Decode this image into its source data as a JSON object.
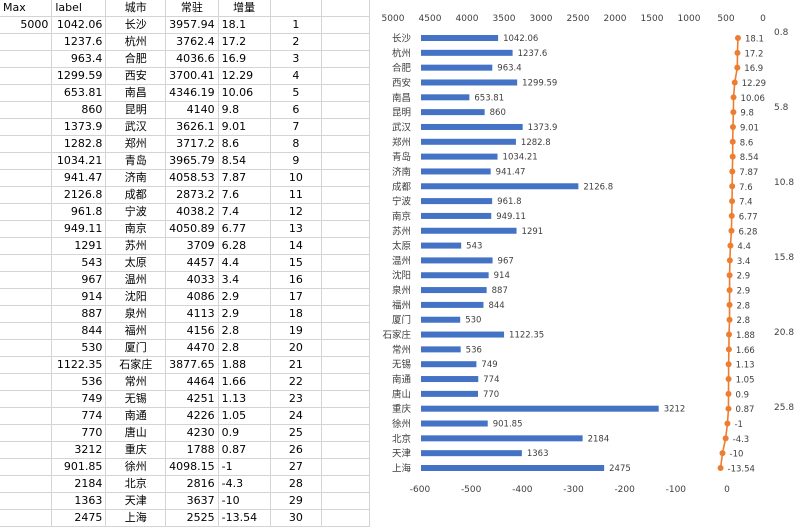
{
  "sheet": {
    "headers": [
      "Max",
      "label",
      "城市",
      "常驻",
      "增量",
      "",
      ""
    ],
    "max_value": "5000",
    "rows": [
      {
        "label": "1042.06",
        "city": "长沙",
        "pop": "3957.94",
        "inc": "18.1",
        "rank": "1"
      },
      {
        "label": "1237.6",
        "city": "杭州",
        "pop": "3762.4",
        "inc": "17.2",
        "rank": "2"
      },
      {
        "label": "963.4",
        "city": "合肥",
        "pop": "4036.6",
        "inc": "16.9",
        "rank": "3"
      },
      {
        "label": "1299.59",
        "city": "西安",
        "pop": "3700.41",
        "inc": "12.29",
        "rank": "4"
      },
      {
        "label": "653.81",
        "city": "南昌",
        "pop": "4346.19",
        "inc": "10.06",
        "rank": "5"
      },
      {
        "label": "860",
        "city": "昆明",
        "pop": "4140",
        "inc": "9.8",
        "rank": "6"
      },
      {
        "label": "1373.9",
        "city": "武汉",
        "pop": "3626.1",
        "inc": "9.01",
        "rank": "7"
      },
      {
        "label": "1282.8",
        "city": "郑州",
        "pop": "3717.2",
        "inc": "8.6",
        "rank": "8"
      },
      {
        "label": "1034.21",
        "city": "青岛",
        "pop": "3965.79",
        "inc": "8.54",
        "rank": "9"
      },
      {
        "label": "941.47",
        "city": "济南",
        "pop": "4058.53",
        "inc": "7.87",
        "rank": "10"
      },
      {
        "label": "2126.8",
        "city": "成都",
        "pop": "2873.2",
        "inc": "7.6",
        "rank": "11"
      },
      {
        "label": "961.8",
        "city": "宁波",
        "pop": "4038.2",
        "inc": "7.4",
        "rank": "12"
      },
      {
        "label": "949.11",
        "city": "南京",
        "pop": "4050.89",
        "inc": "6.77",
        "rank": "13"
      },
      {
        "label": "1291",
        "city": "苏州",
        "pop": "3709",
        "inc": "6.28",
        "rank": "14"
      },
      {
        "label": "543",
        "city": "太原",
        "pop": "4457",
        "inc": "4.4",
        "rank": "15"
      },
      {
        "label": "967",
        "city": "温州",
        "pop": "4033",
        "inc": "3.4",
        "rank": "16"
      },
      {
        "label": "914",
        "city": "沈阳",
        "pop": "4086",
        "inc": "2.9",
        "rank": "17"
      },
      {
        "label": "887",
        "city": "泉州",
        "pop": "4113",
        "inc": "2.9",
        "rank": "18"
      },
      {
        "label": "844",
        "city": "福州",
        "pop": "4156",
        "inc": "2.8",
        "rank": "19"
      },
      {
        "label": "530",
        "city": "厦门",
        "pop": "4470",
        "inc": "2.8",
        "rank": "20"
      },
      {
        "label": "1122.35",
        "city": "石家庄",
        "pop": "3877.65",
        "inc": "1.88",
        "rank": "21"
      },
      {
        "label": "536",
        "city": "常州",
        "pop": "4464",
        "inc": "1.66",
        "rank": "22"
      },
      {
        "label": "749",
        "city": "无锡",
        "pop": "4251",
        "inc": "1.13",
        "rank": "23"
      },
      {
        "label": "774",
        "city": "南通",
        "pop": "4226",
        "inc": "1.05",
        "rank": "24"
      },
      {
        "label": "770",
        "city": "唐山",
        "pop": "4230",
        "inc": "0.9",
        "rank": "25"
      },
      {
        "label": "3212",
        "city": "重庆",
        "pop": "1788",
        "inc": "0.87",
        "rank": "26"
      },
      {
        "label": "901.85",
        "city": "徐州",
        "pop": "4098.15",
        "inc": "-1",
        "rank": "27"
      },
      {
        "label": "2184",
        "city": "北京",
        "pop": "2816",
        "inc": "-4.3",
        "rank": "28"
      },
      {
        "label": "1363",
        "city": "天津",
        "pop": "3637",
        "inc": "-10",
        "rank": "29"
      },
      {
        "label": "2475",
        "city": "上海",
        "pop": "2525",
        "inc": "-13.54",
        "rank": "30"
      }
    ]
  },
  "chart_data": {
    "type": "bar",
    "orientation": "horizontal",
    "title": "",
    "categories": [
      "长沙",
      "杭州",
      "合肥",
      "西安",
      "南昌",
      "昆明",
      "武汉",
      "郑州",
      "青岛",
      "济南",
      "成都",
      "宁波",
      "南京",
      "苏州",
      "太原",
      "温州",
      "沈阳",
      "泉州",
      "福州",
      "厦门",
      "石家庄",
      "常州",
      "无锡",
      "南通",
      "唐山",
      "重庆",
      "徐州",
      "北京",
      "天津",
      "上海"
    ],
    "bar_series": {
      "values": [
        1042.06,
        1237.6,
        963.4,
        1299.59,
        653.81,
        860,
        1373.9,
        1282.8,
        1034.21,
        941.47,
        2126.8,
        961.8,
        949.11,
        1291,
        543,
        967,
        914,
        887,
        844,
        530,
        1122.35,
        536,
        749,
        774,
        770,
        3212,
        901.85,
        2184,
        1363,
        2475
      ],
      "data_labels": [
        "1042.06",
        "1237.6",
        "963.4",
        "1299.59",
        "653.81",
        "860",
        "1373.9",
        "1282.8",
        "1034.21",
        "941.47",
        "2126.8",
        "961.8",
        "949.11",
        "1291",
        "543",
        "967",
        "914",
        "887",
        "844",
        "530",
        "1122.35",
        "536",
        "749",
        "774",
        "770",
        "3212",
        "901.85",
        "2184",
        "1363",
        "2475"
      ],
      "color": "#4472c4"
    },
    "line_series": {
      "values": [
        18.1,
        17.2,
        16.9,
        12.29,
        10.06,
        9.8,
        9.01,
        8.6,
        8.54,
        7.87,
        7.6,
        7.4,
        6.77,
        6.28,
        4.4,
        3.4,
        2.9,
        2.9,
        2.8,
        2.8,
        1.88,
        1.66,
        1.13,
        1.05,
        0.9,
        0.87,
        -1,
        -4.3,
        -10,
        -13.54
      ],
      "data_labels": [
        "18.1",
        "17.2",
        "16.9",
        "12.29",
        "10.06",
        "9.8",
        "9.01",
        "8.6",
        "8.54",
        "7.87",
        "7.6",
        "7.4",
        "6.77",
        "6.28",
        "4.4",
        "3.4",
        "2.9",
        "2.9",
        "2.8",
        "2.8",
        "1.88",
        "1.66",
        "1.13",
        "1.05",
        "0.9",
        "0.87",
        "-1",
        "-4.3",
        "-10",
        "-13.54"
      ],
      "color": "#ed7d31"
    },
    "top_axis": {
      "min": 0,
      "max": 5000,
      "reversed": true,
      "ticks": [
        5000,
        4500,
        4000,
        3500,
        3000,
        2500,
        2000,
        1500,
        1000,
        500,
        0
      ]
    },
    "bottom_axis": {
      "min": -600,
      "max": 0,
      "ticks": [
        -600,
        -500,
        -400,
        -300,
        -200,
        -100,
        0
      ]
    },
    "right_axis": {
      "min": 0.8,
      "max": 30.8,
      "ticks": [
        0.8,
        5.8,
        10.8,
        15.8,
        20.8,
        25.8
      ]
    },
    "legend": "none",
    "grid": false
  }
}
